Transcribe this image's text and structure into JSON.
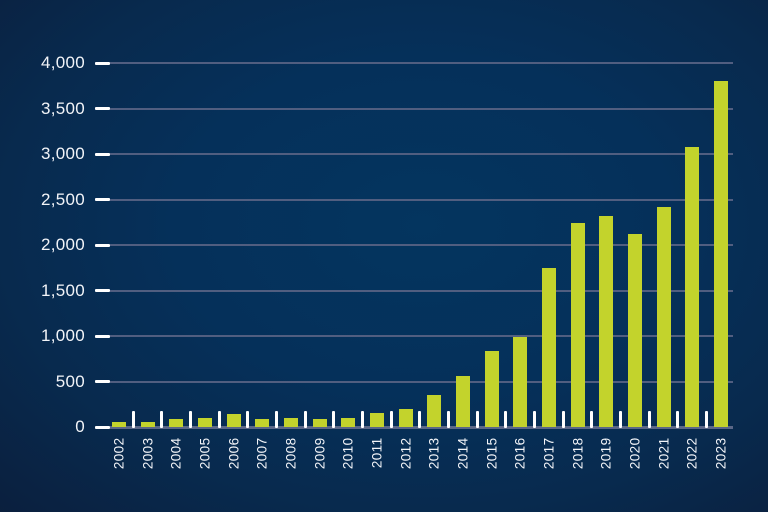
{
  "chart_data": {
    "type": "bar",
    "title": "",
    "xlabel": "",
    "ylabel": "",
    "categories": [
      "2002",
      "2003",
      "2004",
      "2005",
      "2006",
      "2007",
      "2008",
      "2009",
      "2010",
      "2011",
      "2012",
      "2013",
      "2014",
      "2015",
      "2016",
      "2017",
      "2018",
      "2019",
      "2020",
      "2021",
      "2022",
      "2023"
    ],
    "values": [
      55,
      50,
      85,
      100,
      140,
      90,
      95,
      85,
      100,
      150,
      195,
      350,
      565,
      835,
      990,
      1750,
      2245,
      2320,
      2120,
      2420,
      3080,
      3800
    ],
    "ylim": [
      0,
      4000
    ],
    "ytick_step": 500,
    "ytick_labels": [
      "0",
      "500",
      "1,000",
      "1,500",
      "2,000",
      "2,500",
      "3,000",
      "3,500",
      "4,000"
    ],
    "grid": true,
    "legend": false,
    "colors": {
      "bar": "#c3d32c",
      "gridline": "#515e80",
      "axisline": "#5a6787",
      "tick": "#ffffff",
      "label_text": "#f2f4f8",
      "background_center": "#04355f",
      "background_edge": "#0b1e3c"
    }
  }
}
